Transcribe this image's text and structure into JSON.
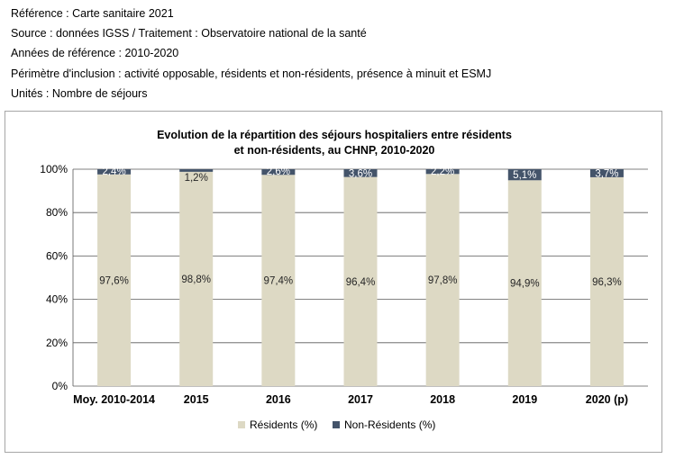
{
  "meta": {
    "reference": "Référence : Carte sanitaire 2021",
    "source": "Source : données IGSS / Traitement : Observatoire national de la santé",
    "years": "Années de référence : 2010-2020",
    "scope": "Périmètre d'inclusion : activité opposable, résidents et non-résidents, présence à minuit et ESMJ",
    "units": "Unités : Nombre de séjours"
  },
  "colors": {
    "residents": "#ddd9c4",
    "non_residents": "#44546a",
    "grid": "#595959"
  },
  "chart_data": {
    "type": "bar",
    "stacked": true,
    "percent_stacked": true,
    "title": "Evolution de la répartition des séjours hospitaliers entre résidents et non-résidents, au CHNP, 2010-2020",
    "title_lines": [
      "Evolution de la répartition des séjours hospitaliers entre résidents",
      "et non-résidents, au CHNP, 2010-2020"
    ],
    "categories": [
      "Moy. 2010-2014",
      "2015",
      "2016",
      "2017",
      "2018",
      "2019",
      "2020 (p)"
    ],
    "series": [
      {
        "name": "Résidents (%)",
        "values": [
          97.6,
          98.8,
          97.4,
          96.4,
          97.8,
          94.9,
          96.3
        ],
        "labels": [
          "97,6%",
          "98,8%",
          "97,4%",
          "96,4%",
          "97,8%",
          "94,9%",
          "96,3%"
        ]
      },
      {
        "name": "Non-Résidents (%)",
        "values": [
          2.4,
          1.2,
          2.6,
          3.6,
          2.2,
          5.1,
          3.7
        ],
        "labels": [
          "2,4%",
          "1,2%",
          "2,6%",
          "3,6%",
          "2,2%",
          "5,1%",
          "3,7%"
        ]
      }
    ],
    "ylim": [
      0,
      100
    ],
    "yticks": [
      "0%",
      "20%",
      "40%",
      "60%",
      "80%",
      "100%"
    ],
    "grid": true,
    "legend_position": "bottom",
    "xlabel": "",
    "ylabel": ""
  }
}
